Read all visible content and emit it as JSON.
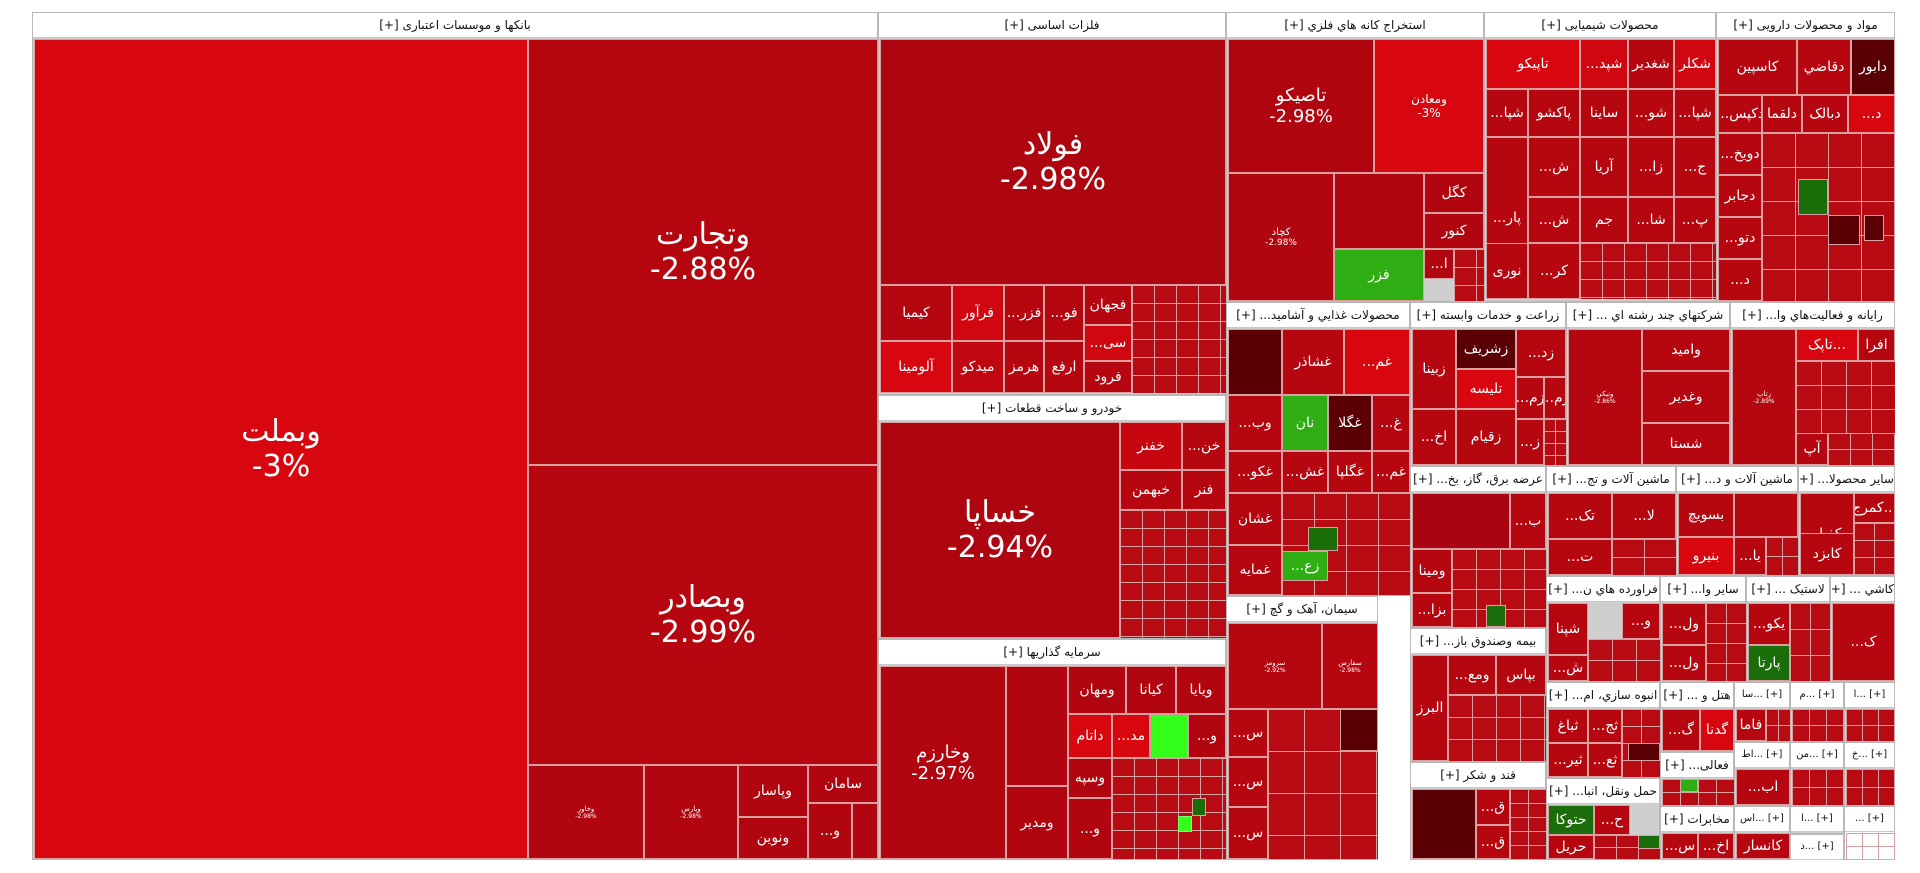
{
  "colors": {
    "red1": "#d8070f",
    "red2": "#b8050d",
    "red3": "#a90410",
    "red4": "#c2060f",
    "dark": "#5a0004",
    "green": "#2eae12",
    "darkgreen": "#1b6d0a",
    "brightgreen": "#33ff1a"
  },
  "sectors": {
    "banks": {
      "title": "بانکها و موسسات اعتباری [+]"
    },
    "metals": {
      "title": "فلزات اساسی [+]"
    },
    "mining": {
      "title": "استخراج کانه هاي فلزي [+]"
    },
    "chem": {
      "title": "محصولات شیمیایی [+]"
    },
    "pharma": {
      "title": "مواد و محصولات دارویی [+]"
    },
    "auto": {
      "title": "خودرو و ساخت قطعات [+]"
    },
    "invest": {
      "title": "سرمایه گذاریها [+]"
    },
    "food": {
      "title": "محصولات غذايي و آشاميد... [+]"
    },
    "agri": {
      "title": "زراعت و خدمات وابسته [+]"
    },
    "multi": {
      "title": "شرکتهاي چند رشته اي ... [+]"
    },
    "computer": {
      "title": "رایانه و فعالیت‌هاي وا... [+]"
    },
    "power": {
      "title": "عرضه برق، گاز، بخ... [+]"
    },
    "machinery": {
      "title": "ماشین آلات و تج... [+]"
    },
    "electric": {
      "title": "ماشین آلات و د... [+]"
    },
    "other": {
      "title": "سایر محصولا... [+]"
    },
    "cement": {
      "title": "سیمان، آهک و گچ [+]"
    },
    "insurance": {
      "title": "بیمه وصندوق باز... [+]"
    },
    "sugar": {
      "title": "قند و شکر [+]"
    },
    "refinery": {
      "title": "فراورده هاي ن... [+]"
    },
    "building": {
      "title": "انبوه سازي، ام... [+]"
    },
    "transport": {
      "title": "حمل ونقل، انبا... [+]"
    },
    "othermine": {
      "title": "سایر وا... [+]"
    },
    "rubber": {
      "title": "لاستیک ... [+]"
    },
    "tile": {
      "title": "کاشي ... [+]"
    },
    "hotel": {
      "title": "هتل و ... [+]"
    },
    "activity": {
      "title": "فعالی... [+]"
    },
    "telecom": {
      "title": "مخابرات [+]"
    }
  },
  "tiles": {
    "vbmelat": {
      "name": "وبملت",
      "pct": "-3%"
    },
    "vtejarat": {
      "name": "وتجارت",
      "pct": "-2.88%"
    },
    "vbsader": {
      "name": "وبصادر",
      "pct": "-2.99%"
    },
    "vkhavar": {
      "name": "وخاور",
      "pct": "-2.98%"
    },
    "vpars": {
      "name": "وپارس",
      "pct": "-2.98%"
    },
    "vpasar": {
      "name": "وپاسار"
    },
    "vnovin": {
      "name": "ونوین"
    },
    "saman": {
      "name": "سامان"
    },
    "v_small": {
      "name": "...و"
    },
    "foolad": {
      "name": "فولاد",
      "pct": "-2.98%"
    },
    "kimia": {
      "name": "کیمیا"
    },
    "faravar": {
      "name": "فرآور"
    },
    "alumina": {
      "name": "آلومینا"
    },
    "midko": {
      "name": "میدکو"
    },
    "hormoz": {
      "name": "هرمز"
    },
    "arfe": {
      "name": "ارفع"
    },
    "forud": {
      "name": "فرود"
    },
    "fjahan": {
      "name": "فجهان"
    },
    "tasiko": {
      "name": "تاصیکو",
      "pct": "-2.98%"
    },
    "vmaaden": {
      "name": "ومعادن",
      "pct": "-3%"
    },
    "kchad": {
      "name": "کچاد",
      "pct": "-2.98%"
    },
    "kgol": {
      "name": "کگل"
    },
    "knur": {
      "name": "کنور"
    },
    "fazar": {
      "name": "فزر"
    },
    "shekar": {
      "name": "شکلر"
    },
    "shghadir": {
      "name": "شغدیر"
    },
    "tapiko": {
      "name": "تاپیکو"
    },
    "pakshu": {
      "name": "پاکشو"
    },
    "shita": {
      "name": "ساینا"
    },
    "aria": {
      "name": "آریا"
    },
    "jam": {
      "name": "جم"
    },
    "nuri": {
      "name": "نوری"
    },
    "dabour": {
      "name": "دابور"
    },
    "daghazi": {
      "name": "دقاضي"
    },
    "kaspin": {
      "name": "کاسپین"
    },
    "dalgma": {
      "name": "دلقما"
    },
    "dabalk": {
      "name": "دبالک"
    },
    "dejaber": {
      "name": "دجابر"
    },
    "khsapa": {
      "name": "خساپا",
      "pct": "-2.94%"
    },
    "khfenar": {
      "name": "خفنر"
    },
    "khbahman": {
      "name": "خبهمن"
    },
    "fanr": {
      "name": "فنر"
    },
    "vkharazm": {
      "name": "وخارزم",
      "pct": "-2.97%"
    },
    "vyaya": {
      "name": "ویایا"
    },
    "kiana": {
      "name": "کیانا"
    },
    "vmahan": {
      "name": "ومهان"
    },
    "datam": {
      "name": "داتام"
    },
    "vsapeh": {
      "name": "وسپه"
    },
    "vmadir": {
      "name": "ومدیر"
    },
    "ghshazar": {
      "name": "غشاذر"
    },
    "nan": {
      "name": "نان"
    },
    "ghegola": {
      "name": "غگلپا"
    },
    "ghshan": {
      "name": "غشان"
    },
    "ghmaya": {
      "name": "غمایه"
    },
    "zbina": {
      "name": "زبینا"
    },
    "zsharif": {
      "name": "زشریف"
    },
    "tilise": {
      "name": "تلیسه"
    },
    "zghiam": {
      "name": "زقیام"
    },
    "vamid": {
      "name": "وامید"
    },
    "vghadir": {
      "name": "وغدیر"
    },
    "shesta": {
      "name": "شستا"
    },
    "vniki": {
      "name": "ونیکي",
      "pct": "-2.86%"
    },
    "afra": {
      "name": "افرا"
    },
    "tapik": {
      "name": "تاپک..."
    },
    "ap": {
      "name": "آپ"
    },
    "rayane": {
      "name": "رتاپ",
      "pct": "-2.89%"
    },
    "vmina": {
      "name": "ومینا"
    },
    "bsoich": {
      "name": "بسویچ"
    },
    "benira": {
      "name": "بنیرو"
    },
    "kkapar": {
      "name": "کفپار"
    },
    "kabzd": {
      "name": "کابزد"
    },
    "kmarj": {
      "name": "کمرج..."
    },
    "shpna": {
      "name": "شپنا"
    },
    "parta": {
      "name": "پارتا"
    },
    "hakim": {
      "name": "...یکو"
    },
    "sorumi": {
      "name": "سرومز",
      "pct": "-2.92%"
    },
    "sfaro": {
      "name": "سفارس",
      "pct": "-2.98%"
    },
    "albrz": {
      "name": "البرز"
    },
    "vdi": {
      "name": "ودي"
    },
    "bpas": {
      "name": "بپاس"
    },
    "vomaj": {
      "name": "...ومع"
    },
    "ghand": {
      "name": "...ق"
    },
    "tbaa": {
      "name": "ثباغ"
    },
    "htucha": {
      "name": "حتوکا"
    },
    "hrail": {
      "name": "حریل"
    },
    "gdna": {
      "name": "گدنا"
    },
    "fama": {
      "name": "فاما"
    },
    "kansara": {
      "name": "کانسار"
    }
  }
}
